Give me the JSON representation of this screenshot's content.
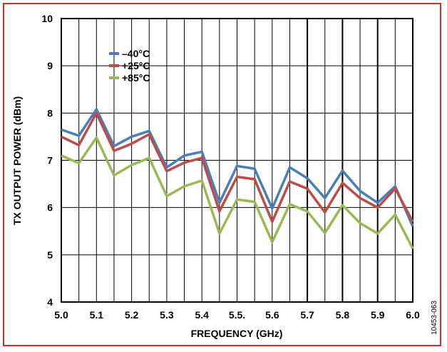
{
  "chart_data": {
    "type": "line",
    "xlabel": "FREQUENCY (GHz)",
    "ylabel": "TX OUTPUT POWER (dBm)",
    "xlim": [
      5.0,
      6.0
    ],
    "ylim": [
      4,
      10
    ],
    "x_ticks": [
      "5.0",
      "5.1",
      "5.2",
      "5.3",
      "5.4",
      "5.5.",
      "5.6",
      "5.7",
      "5.8",
      "5.9",
      "6.0"
    ],
    "y_ticks": [
      "4",
      "5",
      "6",
      "7",
      "8",
      "9",
      "10"
    ],
    "grid": "vertical and horizontal",
    "legend_placement": "top-left",
    "figure_id": "10453-063",
    "x": [
      5.0,
      5.05,
      5.1,
      5.15,
      5.2,
      5.25,
      5.3,
      5.35,
      5.4,
      5.45,
      5.5,
      5.55,
      5.6,
      5.65,
      5.7,
      5.75,
      5.8,
      5.85,
      5.9,
      5.95,
      6.0
    ],
    "series": [
      {
        "name": "–40°C",
        "color": "#4a7ebb",
        "values": [
          7.65,
          7.52,
          8.08,
          7.3,
          7.5,
          7.62,
          6.85,
          7.1,
          7.18,
          6.1,
          6.88,
          6.82,
          5.98,
          6.85,
          6.62,
          6.2,
          6.78,
          6.35,
          6.1,
          6.45,
          5.6
        ]
      },
      {
        "name": "+25°C",
        "color": "#be4b48",
        "values": [
          7.5,
          7.32,
          8.0,
          7.2,
          7.35,
          7.55,
          6.77,
          6.95,
          7.05,
          5.92,
          6.65,
          6.6,
          5.7,
          6.55,
          6.4,
          5.9,
          6.52,
          6.2,
          6.0,
          6.4,
          5.7
        ]
      },
      {
        "name": "+85°C",
        "color": "#98b954",
        "values": [
          7.1,
          6.94,
          7.48,
          6.68,
          6.9,
          7.05,
          6.24,
          6.45,
          6.57,
          5.45,
          6.17,
          6.12,
          5.27,
          6.07,
          5.92,
          5.46,
          6.05,
          5.67,
          5.45,
          5.85,
          5.13
        ]
      }
    ]
  }
}
